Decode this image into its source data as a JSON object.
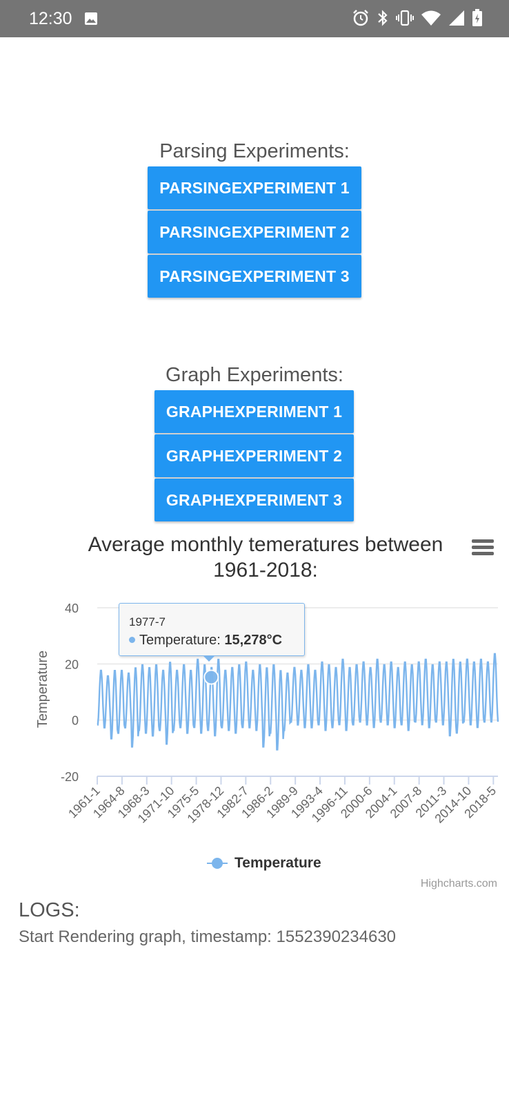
{
  "status_bar": {
    "time": "12:30",
    "icons": [
      "image-icon",
      "alarm-icon",
      "bluetooth-icon",
      "vibrate-icon",
      "wifi-icon",
      "signal-icon",
      "battery-icon"
    ]
  },
  "parsing": {
    "title": "Parsing Experiments:",
    "buttons": [
      "PARSINGEXPERIMENT 1",
      "PARSINGEXPERIMENT 2",
      "PARSINGEXPERIMENT 3"
    ]
  },
  "graph": {
    "title": "Graph Experiments:",
    "buttons": [
      "GRAPHEXPERIMENT 1",
      "GRAPHEXPERIMENT 2",
      "GRAPHEXPERIMENT 3"
    ]
  },
  "colors": {
    "button": "#2196f3",
    "series": "#7cb5ec"
  },
  "chart_data": {
    "type": "line",
    "title": "Average monthly temeratures between 1961-2018:",
    "ylabel": "Temperature",
    "ylim": [
      -20,
      40
    ],
    "yticks": [
      40,
      20,
      0,
      -20
    ],
    "xticks": [
      "1961-1",
      "1964-8",
      "1968-3",
      "1971-10",
      "1975-5",
      "1978-12",
      "1982-7",
      "1986-2",
      "1989-9",
      "1993-4",
      "1996-11",
      "2000-6",
      "2004-1",
      "2007-8",
      "2011-3",
      "2014-10",
      "2018-5"
    ],
    "x_start": "1961-1",
    "months": 697,
    "legend": "bottom-center",
    "series": [
      {
        "name": "Temperature",
        "yearly_max": [
          18,
          16,
          18,
          18,
          17,
          19,
          20,
          19,
          20,
          18,
          21,
          18,
          20,
          18,
          22,
          20,
          19,
          22,
          18,
          19,
          20,
          21,
          18,
          20,
          19,
          20,
          18,
          17,
          19,
          18,
          20,
          18,
          21,
          20,
          19,
          22,
          19,
          20,
          21,
          19,
          22,
          20,
          21,
          19,
          21,
          20,
          21,
          22,
          20,
          21,
          21,
          22,
          21,
          22,
          21,
          22,
          21,
          24
        ],
        "yearly_min": [
          -2,
          -3,
          -7,
          -5,
          -3,
          -10,
          -4,
          -5,
          -6,
          -4,
          -9,
          -4,
          -3,
          -5,
          -3,
          -5,
          -4,
          -6,
          -3,
          -4,
          -5,
          -3,
          -3,
          -4,
          -10,
          -5,
          -11,
          -4,
          -1,
          -2,
          -3,
          -3,
          -2,
          -4,
          -3,
          -2,
          -4,
          -2,
          -1,
          -2,
          -3,
          -1,
          -2,
          -3,
          -2,
          -4,
          -1,
          -2,
          -3,
          -1,
          -2,
          -6,
          -5,
          -1,
          -2,
          -3,
          -1,
          -1
        ]
      }
    ],
    "tooltip": {
      "date": "1977-7",
      "series": "Temperature",
      "value": "15,278°C",
      "y": 15.278
    },
    "credits": "Highcharts.com"
  },
  "logs": {
    "title": "LOGS:",
    "line": "Start Rendering graph, timestamp: 1552390234630"
  }
}
